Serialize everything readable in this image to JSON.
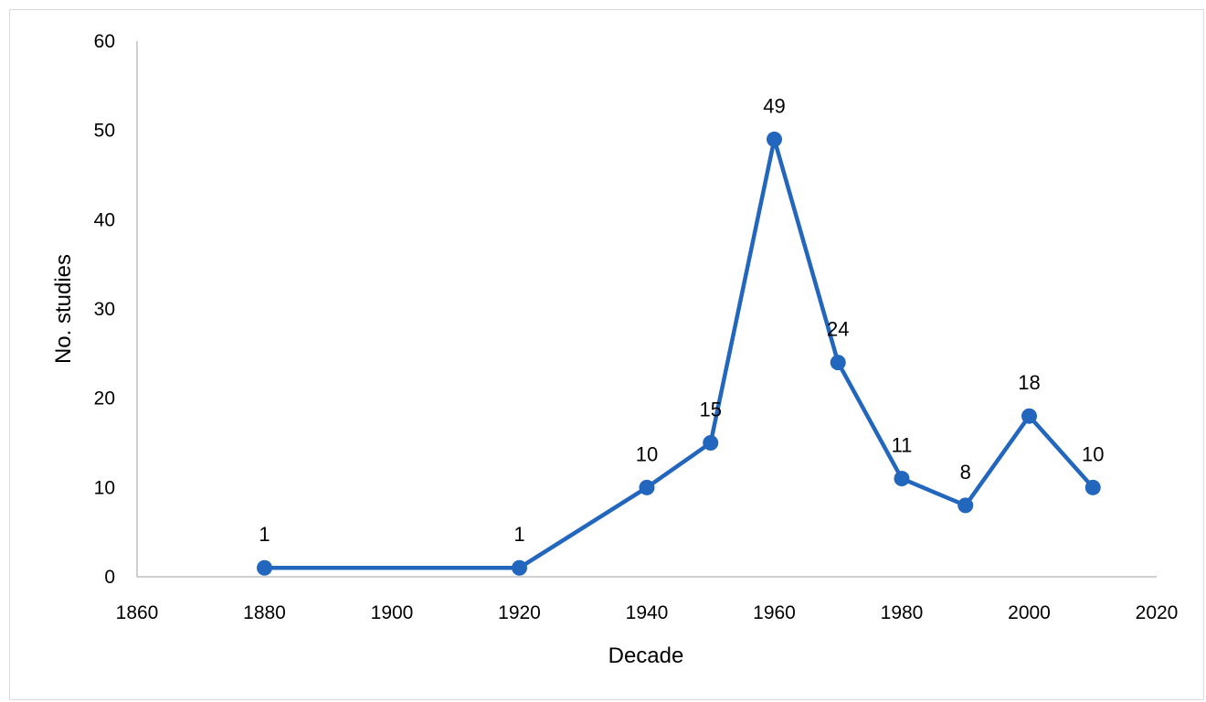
{
  "chart_data": {
    "type": "line",
    "title": "",
    "xlabel": "Decade",
    "ylabel": "No. studies",
    "xlim": [
      1860,
      2020
    ],
    "ylim": [
      0,
      60
    ],
    "x_ticks": [
      1860,
      1880,
      1900,
      1920,
      1940,
      1960,
      1980,
      2000,
      2020
    ],
    "y_ticks": [
      0,
      10,
      20,
      30,
      40,
      50,
      60
    ],
    "grid": false,
    "series": [
      {
        "x": [
          1880,
          1920,
          1940,
          1950,
          1960,
          1970,
          1980,
          1990,
          2000,
          2010
        ],
        "values": [
          1,
          1,
          10,
          15,
          49,
          24,
          11,
          8,
          18,
          10
        ],
        "data_labels": [
          "1",
          "1",
          "10",
          "15",
          "49",
          "24",
          "11",
          "8",
          "18",
          "10"
        ]
      }
    ],
    "colors": {
      "line": "#2266BD",
      "axis": "#BFBFBF"
    }
  }
}
